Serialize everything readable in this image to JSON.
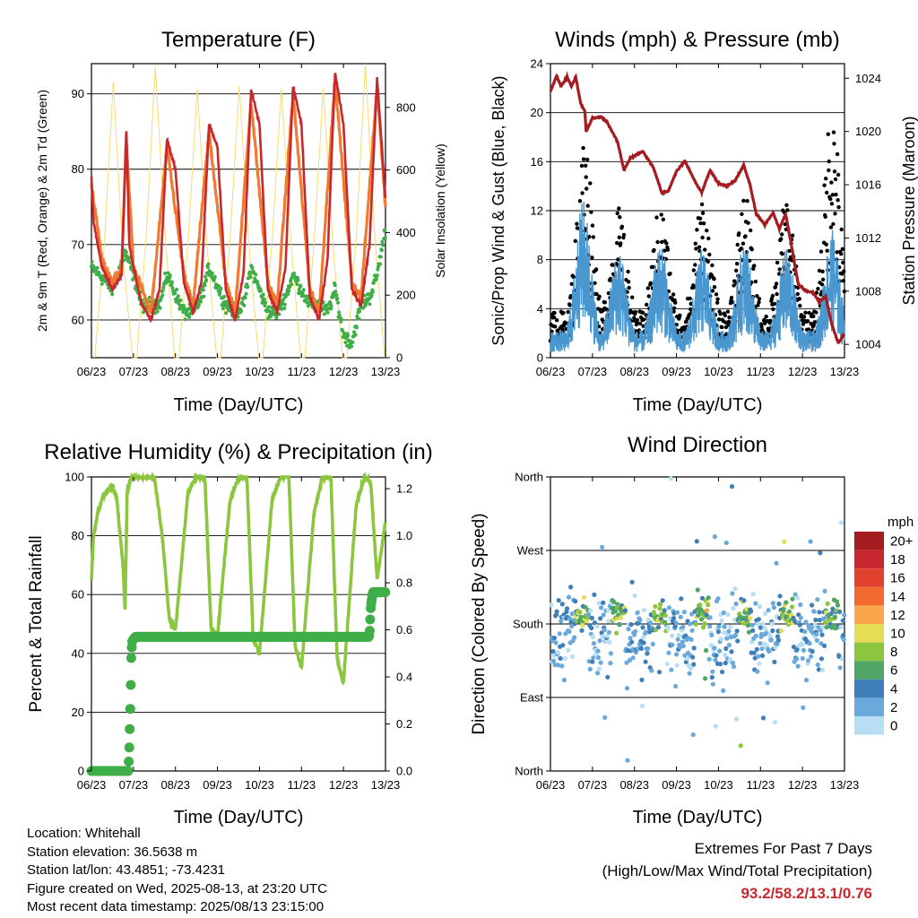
{
  "x_ticks": [
    "06/23",
    "07/23",
    "08/23",
    "09/23",
    "10/23",
    "11/23",
    "12/23",
    "13/23"
  ],
  "x_axis_title": "Time (Day/UTC)",
  "panels": {
    "temperature": {
      "title": "Temperature (F)",
      "left_label": "2m & 9m T (Red, Orange) & 2m Td (Green)",
      "right_label": "Solar Insolation (Yellow)",
      "left_ticks": [
        "60",
        "70",
        "80",
        "90"
      ],
      "right_ticks": [
        "0",
        "200",
        "400",
        "600",
        "800"
      ]
    },
    "winds": {
      "title": "Winds (mph) & Pressure (mb)",
      "left_label": "Sonic/Prop Wind & Gust (Blue, Black)",
      "right_label": "Station Pressure (Maroon)",
      "left_ticks": [
        "0",
        "4",
        "8",
        "12",
        "16",
        "20",
        "24"
      ],
      "right_ticks": [
        "1004",
        "1008",
        "1012",
        "1016",
        "1020",
        "1024"
      ]
    },
    "humidity": {
      "title": "Relative Humidity (%) & Precipitation (in)",
      "left_label": "Percent & Total Rainfall",
      "left_ticks": [
        "0",
        "20",
        "40",
        "60",
        "80",
        "100"
      ],
      "right_ticks": [
        "0.0",
        "0.2",
        "0.4",
        "0.6",
        "0.8",
        "1.0",
        "1.2"
      ]
    },
    "direction": {
      "title": "Wind Direction",
      "left_label": "Direction (Colored By Speed)",
      "left_ticks": [
        "North",
        "East",
        "South",
        "West",
        "North"
      ],
      "legend_title": "mph",
      "legend_labels": [
        "20+",
        "18",
        "16",
        "14",
        "12",
        "10",
        "8",
        "6",
        "4",
        "2",
        "0"
      ],
      "legend_colors": [
        "#a51c20",
        "#c8272d",
        "#e0422d",
        "#f26a30",
        "#f9a74a",
        "#e7dd55",
        "#8cc63f",
        "#4fa665",
        "#3f7fb8",
        "#6aa9dc",
        "#b8def3"
      ]
    }
  },
  "info": {
    "location": "Location: Whitehall",
    "elevation": "Station elevation: 36.5638 m",
    "latlon": "Station lat/lon: 43.4851; -73.4231",
    "created": "Figure created on Wed, 2025-08-13, at 23:20 UTC",
    "recent": "Most recent data timestamp: 2025/08/13 23:15:00"
  },
  "extremes": {
    "line1": "Extremes For Past 7 Days",
    "line2": "(High/Low/Max Wind/Total Precipitation)",
    "values": "93.2/58.2/13.1/0.76"
  },
  "chart_data": [
    {
      "type": "line",
      "title": "Temperature (F)",
      "xlabel": "Time (Day/UTC)",
      "ylabel": "2m & 9m T (Red, Orange) & 2m Td (Green)",
      "y2label": "Solar Insolation (Yellow)",
      "ylim": [
        55,
        94
      ],
      "y2lim": [
        0,
        940
      ],
      "xlim": [
        0,
        7
      ],
      "grid": true,
      "daily_max_temp": [
        85.5,
        84.0,
        87.0,
        90.7,
        91.3,
        93.2,
        92.3
      ],
      "daily_min_temp": [
        64.0,
        59.0,
        60.0,
        60.0,
        61.0,
        60.0,
        61.5
      ],
      "series": [
        {
          "name": "2m T",
          "color": "#c8272d",
          "x": [
            0,
            0.05,
            0.25,
            0.5,
            0.72,
            0.8,
            0.83,
            0.9,
            1.0,
            1.2,
            1.42,
            1.62,
            1.8,
            2.0,
            2.2,
            2.42,
            2.62,
            2.8,
            3.0,
            3.2,
            3.42,
            3.62,
            3.8,
            4.0,
            4.2,
            4.42,
            4.62,
            4.8,
            5.0,
            5.2,
            5.42,
            5.62,
            5.8,
            6.0,
            6.2,
            6.42,
            6.62,
            6.8,
            7.0
          ],
          "y": [
            79,
            73,
            67,
            64,
            66,
            80,
            85.5,
            70,
            67,
            62,
            60,
            64,
            84,
            80,
            65,
            61,
            65,
            86,
            83,
            64,
            60,
            66,
            90.5,
            86,
            64,
            61,
            67,
            91,
            86,
            63,
            60,
            68,
            93,
            86,
            64,
            62,
            70,
            92,
            76
          ]
        },
        {
          "name": "9m T",
          "color": "#f07a30",
          "x": [
            0,
            0.25,
            0.5,
            0.72,
            0.83,
            1.0,
            1.42,
            1.8,
            2.2,
            2.42,
            2.8,
            3.2,
            3.42,
            3.8,
            4.2,
            4.42,
            4.8,
            5.2,
            5.42,
            5.8,
            6.2,
            6.42,
            6.8,
            7.0
          ],
          "y": [
            78,
            68,
            65,
            67,
            84,
            67,
            61,
            83,
            66,
            62,
            85,
            65,
            61,
            89,
            65,
            62,
            90,
            64,
            61,
            92,
            65,
            63,
            91,
            75
          ]
        },
        {
          "name": "2m Td",
          "color": "#3fae49",
          "x": [
            0,
            0.2,
            0.5,
            0.8,
            1.0,
            1.2,
            1.42,
            1.62,
            1.8,
            2.2,
            2.42,
            2.62,
            2.8,
            3.2,
            3.42,
            3.62,
            3.8,
            4.2,
            4.42,
            4.62,
            4.8,
            5.2,
            5.42,
            5.62,
            5.8,
            6.0,
            6.2,
            6.42,
            6.62,
            6.8,
            7.0
          ],
          "y": [
            67,
            66,
            64,
            69,
            66,
            62,
            62,
            62,
            66,
            61,
            61,
            63,
            67,
            62,
            61,
            62,
            67,
            61,
            61,
            63,
            66,
            62,
            62,
            61,
            64,
            58,
            57,
            62,
            63,
            66,
            72
          ]
        },
        {
          "name": "Solar Insolation",
          "color": "#f7dc6f",
          "x": [
            0.08,
            0.3,
            0.52,
            0.75,
            0.98,
            1.08,
            1.3,
            1.52,
            1.75,
            1.98,
            2.08,
            2.3,
            2.52,
            2.75,
            2.98,
            3.08,
            3.3,
            3.52,
            3.75,
            3.98,
            4.08,
            4.3,
            4.52,
            4.75,
            4.98,
            5.08,
            5.3,
            5.52,
            5.75,
            5.98,
            6.08,
            6.3,
            6.52,
            6.75,
            6.98
          ],
          "y": [
            0,
            350,
            880,
            320,
            0,
            0,
            380,
            930,
            400,
            0,
            0,
            370,
            860,
            360,
            0,
            0,
            380,
            870,
            360,
            0,
            0,
            370,
            860,
            370,
            0,
            0,
            370,
            860,
            360,
            0,
            0,
            380,
            940,
            380,
            0
          ]
        }
      ]
    },
    {
      "type": "line",
      "title": "Winds (mph) & Pressure (mb)",
      "xlabel": "Time (Day/UTC)",
      "ylabel": "Sonic/Prop Wind & Gust (Blue, Black)",
      "y2label": "Station Pressure (Maroon)",
      "ylim": [
        0,
        24
      ],
      "y2lim": [
        1003,
        1025.1
      ],
      "xlim": [
        0,
        7
      ],
      "grid": true,
      "series": [
        {
          "name": "Station Pressure",
          "color": "#a51c20",
          "x": [
            0,
            0.15,
            0.25,
            0.4,
            0.5,
            0.6,
            0.72,
            0.82,
            0.85,
            1.0,
            1.2,
            1.35,
            1.6,
            1.75,
            1.9,
            2.2,
            2.45,
            2.65,
            2.8,
            3.0,
            3.2,
            3.45,
            3.6,
            3.8,
            4.0,
            4.2,
            4.4,
            4.6,
            4.75,
            4.9,
            5.1,
            5.3,
            5.45,
            5.6,
            5.75,
            5.9,
            6.1,
            6.25,
            6.4,
            6.55,
            6.7,
            6.85,
            7.0
          ],
          "y": [
            1023,
            1024.2,
            1023.4,
            1024.1,
            1023.4,
            1024.1,
            1022.1,
            1021.5,
            1020.0,
            1021.0,
            1021.1,
            1020.7,
            1019.2,
            1017.1,
            1018.0,
            1018.5,
            1017.3,
            1015.4,
            1015.5,
            1017.0,
            1017.8,
            1016.2,
            1015.4,
            1017.1,
            1016.1,
            1015.9,
            1016.3,
            1017.5,
            1016.0,
            1013.8,
            1013.0,
            1013.9,
            1012.7,
            1013.8,
            1011.2,
            1008.5,
            1008.0,
            1007.9,
            1007.2,
            1007.6,
            1005.5,
            1004.1,
            1004.8
          ]
        },
        {
          "name": "Sonic/Prop Wind",
          "color": "#4a97d0",
          "daily_peak_x": [
            0.78,
            1.62,
            2.62,
            3.62,
            4.62,
            5.62,
            6.7
          ],
          "daily_peak_y": [
            13.0,
            9.0,
            9.5,
            9.0,
            9.5,
            9.0,
            10.5
          ]
        },
        {
          "name": "Gust",
          "color": "#000000",
          "daily_peak_x": [
            0.82,
            1.62,
            2.62,
            3.62,
            4.62,
            5.62,
            6.7
          ],
          "daily_peak_y": [
            18.8,
            12.3,
            12.8,
            13.5,
            13.5,
            13.2,
            21.8
          ]
        }
      ]
    },
    {
      "type": "line",
      "title": "Relative Humidity (%) & Precipitation (in)",
      "xlabel": "Time (Day/UTC)",
      "ylabel": "Percent & Total Rainfall",
      "ylim": [
        0,
        100
      ],
      "y2lim": [
        0,
        1.25
      ],
      "xlim": [
        0,
        7
      ],
      "grid": true,
      "series": [
        {
          "name": "Relative Humidity",
          "color": "#8cc63f",
          "x": [
            0,
            0.05,
            0.15,
            0.3,
            0.5,
            0.6,
            0.75,
            0.8,
            0.85,
            0.95,
            1.3,
            1.5,
            1.7,
            1.85,
            2.0,
            2.3,
            2.5,
            2.7,
            2.85,
            3.0,
            3.3,
            3.5,
            3.7,
            3.85,
            4.0,
            4.3,
            4.5,
            4.7,
            4.85,
            5.0,
            5.3,
            5.5,
            5.7,
            5.85,
            6.0,
            6.3,
            6.5,
            6.65,
            6.8,
            7.0
          ],
          "y": [
            65,
            80,
            88,
            94,
            97,
            93,
            70,
            55,
            95,
            100,
            100,
            100,
            78,
            52,
            48,
            95,
            100,
            100,
            48,
            46,
            92,
            100,
            100,
            45,
            40,
            92,
            100,
            100,
            42,
            35,
            88,
            100,
            100,
            38,
            30,
            90,
            100,
            98,
            65,
            85
          ]
        },
        {
          "name": "Total Precipitation",
          "color": "#3fae49",
          "x": [
            0,
            0.88,
            0.9,
            0.92,
            0.94,
            0.95,
            0.97,
            1.0,
            1.05,
            6.6,
            6.62,
            6.65,
            6.7,
            7.0
          ],
          "y": [
            0,
            0,
            0.1,
            0.23,
            0.4,
            0.5,
            0.55,
            0.56,
            0.57,
            0.57,
            0.58,
            0.7,
            0.76,
            0.76
          ]
        }
      ]
    },
    {
      "type": "scatter",
      "title": "Wind Direction",
      "xlabel": "Time (Day/UTC)",
      "ylabel": "Direction (Colored By Speed)",
      "y_categories": [
        "North",
        "East",
        "South",
        "West",
        "North"
      ],
      "ylim": [
        0,
        360
      ],
      "xlim": [
        0,
        7
      ],
      "color_scale_mph": [
        0,
        2,
        4,
        6,
        8,
        10,
        12,
        14,
        16,
        18,
        20
      ],
      "grid": true,
      "prevailing_direction_deg": 180,
      "daily_cluster_x": [
        0.75,
        1.62,
        2.62,
        3.62,
        4.62,
        5.62,
        6.7
      ],
      "daily_cluster_y": [
        180,
        180,
        180,
        180,
        180,
        180,
        180
      ]
    }
  ]
}
